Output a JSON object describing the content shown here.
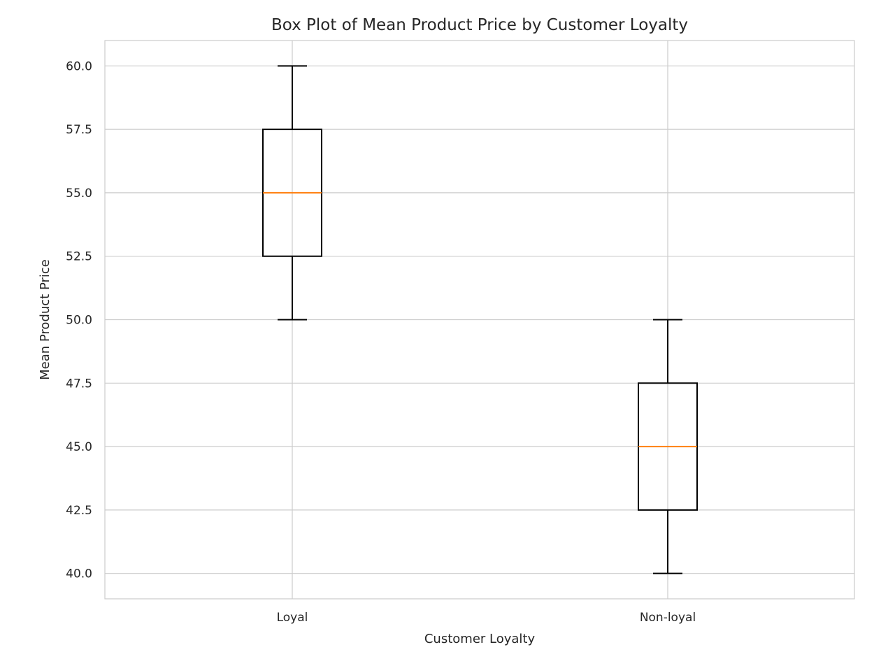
{
  "chart_data": {
    "type": "box",
    "title": "Box Plot of Mean Product Price by Customer Loyalty",
    "xlabel": "Customer Loyalty",
    "ylabel": "Mean Product Price",
    "ylim": [
      39.0,
      61.0
    ],
    "yticks": [
      40.0,
      42.5,
      45.0,
      47.5,
      50.0,
      52.5,
      55.0,
      57.5,
      60.0
    ],
    "ytick_labels": [
      "40.0",
      "42.5",
      "45.0",
      "47.5",
      "50.0",
      "52.5",
      "55.0",
      "57.5",
      "60.0"
    ],
    "grid": true,
    "categories": [
      "Loyal",
      "Non-loyal"
    ],
    "boxes": [
      {
        "category": "Loyal",
        "whisker_low": 50.0,
        "q1": 52.5,
        "median": 55.0,
        "q3": 57.5,
        "whisker_high": 60.0
      },
      {
        "category": "Non-loyal",
        "whisker_low": 40.0,
        "q1": 42.5,
        "median": 45.0,
        "q3": 47.5,
        "whisker_high": 50.0
      }
    ],
    "colors": {
      "background": "#ffffff",
      "grid": "#cccccc",
      "frame": "#cccccc",
      "box": "#000000",
      "median": "#ff7f0e",
      "text": "#262626"
    }
  }
}
